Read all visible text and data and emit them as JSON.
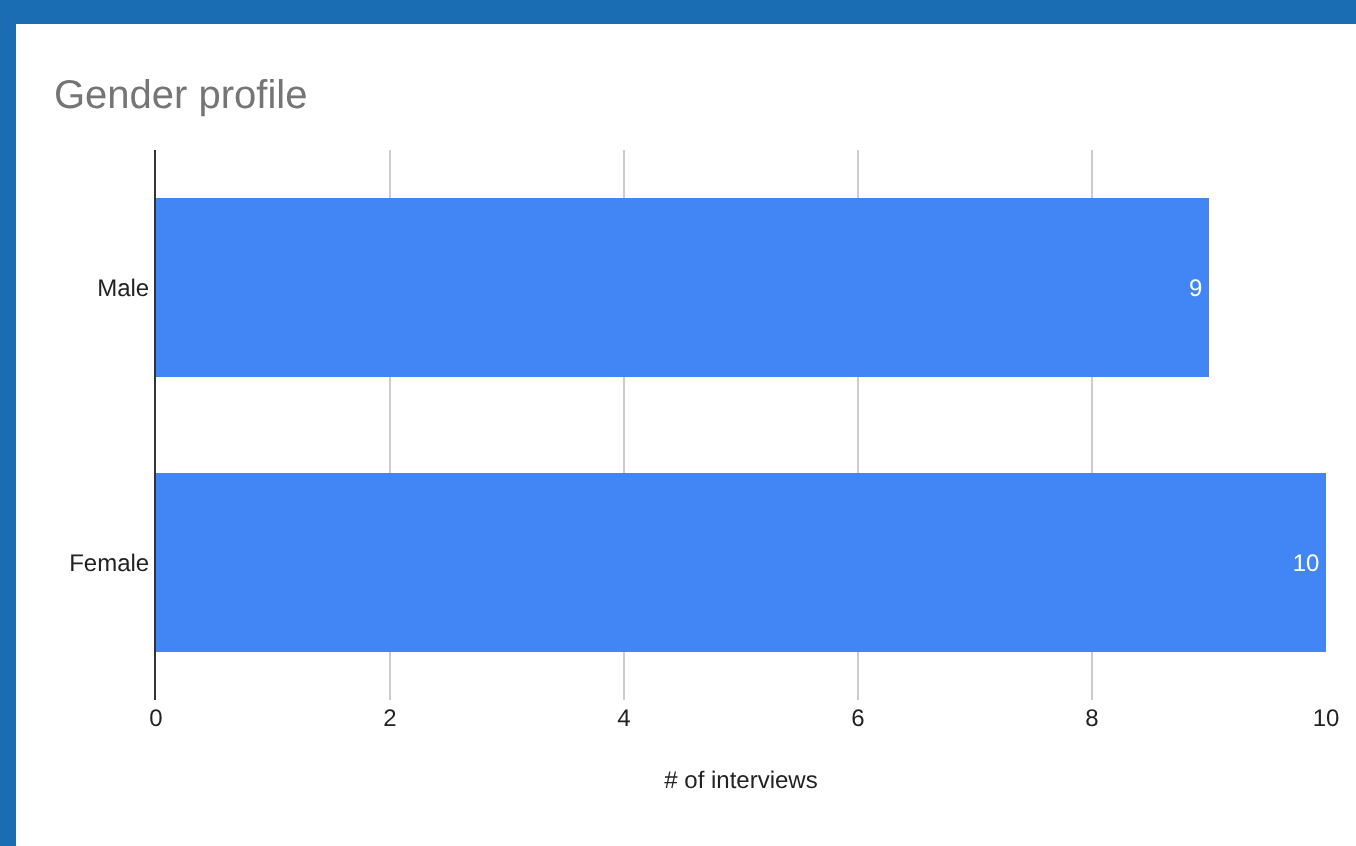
{
  "chart_data": {
    "type": "bar",
    "orientation": "horizontal",
    "title": "Gender profile",
    "xlabel": "# of interviews",
    "categories": [
      "Male",
      "Female"
    ],
    "series": [
      {
        "color": "#4285f4",
        "values": [
          9,
          10
        ]
      }
    ],
    "xlim": [
      0,
      10
    ],
    "xticks": [
      0,
      2,
      4,
      6,
      8,
      10
    ],
    "grid": "x",
    "data_labels": true
  }
}
